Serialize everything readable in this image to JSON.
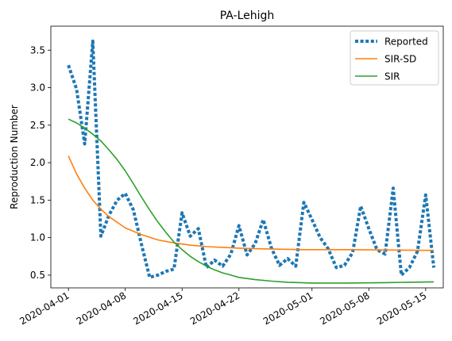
{
  "chart_data": {
    "type": "line",
    "title": "PA-Lehigh",
    "xlabel": "",
    "ylabel": "Reproduction Number",
    "x_start": "2020-04-01",
    "x_end": "2020-05-15",
    "xlim": [
      "2020-03-29T20:00",
      "2020-05-17T04:00"
    ],
    "ylim": [
      0.33,
      3.82
    ],
    "x_ticks": [
      "2020-04-01",
      "2020-04-08",
      "2020-04-15",
      "2020-04-22",
      "2020-05-01",
      "2020-05-08",
      "2020-05-15"
    ],
    "y_ticks": [
      0.5,
      1.0,
      1.5,
      2.0,
      2.5,
      3.0,
      3.5
    ],
    "y_tick_labels": [
      "0.5",
      "1.0",
      "1.5",
      "2.0",
      "2.5",
      "3.0",
      "3.5"
    ],
    "grid": false,
    "legend_position": "top-right",
    "series": [
      {
        "name": "Reported",
        "color": "#1f77b4",
        "style": "dotted",
        "points": [
          [
            "2020-04-01",
            3.3
          ],
          [
            "2020-04-02",
            2.98
          ],
          [
            "2020-04-03",
            2.25
          ],
          [
            "2020-04-04",
            3.62
          ],
          [
            "2020-04-05",
            1.02
          ],
          [
            "2020-04-06",
            1.3
          ],
          [
            "2020-04-07",
            1.5
          ],
          [
            "2020-04-08",
            1.59
          ],
          [
            "2020-04-09",
            1.37
          ],
          [
            "2020-04-10",
            0.91
          ],
          [
            "2020-04-11",
            0.47
          ],
          [
            "2020-04-12",
            0.5
          ],
          [
            "2020-04-13",
            0.55
          ],
          [
            "2020-04-14",
            0.58
          ],
          [
            "2020-04-15",
            1.33
          ],
          [
            "2020-04-16",
            1.02
          ],
          [
            "2020-04-17",
            1.12
          ],
          [
            "2020-04-18",
            0.6
          ],
          [
            "2020-04-19",
            0.7
          ],
          [
            "2020-04-20",
            0.62
          ],
          [
            "2020-04-21",
            0.78
          ],
          [
            "2020-04-22",
            1.16
          ],
          [
            "2020-04-23",
            0.77
          ],
          [
            "2020-04-24",
            0.92
          ],
          [
            "2020-04-25",
            1.24
          ],
          [
            "2020-04-26",
            0.86
          ],
          [
            "2020-04-27",
            0.63
          ],
          [
            "2020-04-28",
            0.72
          ],
          [
            "2020-04-29",
            0.62
          ],
          [
            "2020-04-30",
            1.47
          ],
          [
            "2020-05-01",
            1.24
          ],
          [
            "2020-05-02",
            1.0
          ],
          [
            "2020-05-03",
            0.85
          ],
          [
            "2020-05-04",
            0.6
          ],
          [
            "2020-05-05",
            0.63
          ],
          [
            "2020-05-06",
            0.8
          ],
          [
            "2020-05-07",
            1.42
          ],
          [
            "2020-05-08",
            1.12
          ],
          [
            "2020-05-09",
            0.84
          ],
          [
            "2020-05-10",
            0.78
          ],
          [
            "2020-05-11",
            1.66
          ],
          [
            "2020-05-12",
            0.5
          ],
          [
            "2020-05-13",
            0.6
          ],
          [
            "2020-05-14",
            0.82
          ],
          [
            "2020-05-15",
            1.57
          ],
          [
            "2020-05-16",
            0.6
          ]
        ]
      },
      {
        "name": "SIR-SD",
        "color": "#ff7f0e",
        "style": "solid",
        "points": [
          [
            "2020-04-01",
            2.09
          ],
          [
            "2020-04-02",
            1.85
          ],
          [
            "2020-04-03",
            1.66
          ],
          [
            "2020-04-04",
            1.5
          ],
          [
            "2020-04-05",
            1.38
          ],
          [
            "2020-04-06",
            1.28
          ],
          [
            "2020-04-08",
            1.13
          ],
          [
            "2020-04-10",
            1.04
          ],
          [
            "2020-04-12",
            0.97
          ],
          [
            "2020-04-14",
            0.93
          ],
          [
            "2020-04-16",
            0.9
          ],
          [
            "2020-04-18",
            0.88
          ],
          [
            "2020-04-20",
            0.87
          ],
          [
            "2020-04-22",
            0.86
          ],
          [
            "2020-04-25",
            0.85
          ],
          [
            "2020-04-30",
            0.84
          ],
          [
            "2020-05-05",
            0.84
          ],
          [
            "2020-05-10",
            0.835
          ],
          [
            "2020-05-15",
            0.83
          ],
          [
            "2020-05-16",
            0.83
          ]
        ]
      },
      {
        "name": "SIR",
        "color": "#2ca02c",
        "style": "solid",
        "points": [
          [
            "2020-04-01",
            2.58
          ],
          [
            "2020-04-02",
            2.53
          ],
          [
            "2020-04-03",
            2.46
          ],
          [
            "2020-04-04",
            2.38
          ],
          [
            "2020-04-05",
            2.29
          ],
          [
            "2020-04-06",
            2.17
          ],
          [
            "2020-04-07",
            2.04
          ],
          [
            "2020-04-08",
            1.89
          ],
          [
            "2020-04-09",
            1.72
          ],
          [
            "2020-04-10",
            1.54
          ],
          [
            "2020-04-11",
            1.37
          ],
          [
            "2020-04-12",
            1.21
          ],
          [
            "2020-04-13",
            1.07
          ],
          [
            "2020-04-14",
            0.94
          ],
          [
            "2020-04-15",
            0.84
          ],
          [
            "2020-04-16",
            0.75
          ],
          [
            "2020-04-17",
            0.68
          ],
          [
            "2020-04-18",
            0.62
          ],
          [
            "2020-04-19",
            0.57
          ],
          [
            "2020-04-20",
            0.53
          ],
          [
            "2020-04-21",
            0.5
          ],
          [
            "2020-04-22",
            0.47
          ],
          [
            "2020-04-24",
            0.44
          ],
          [
            "2020-04-26",
            0.42
          ],
          [
            "2020-04-28",
            0.405
          ],
          [
            "2020-05-01",
            0.395
          ],
          [
            "2020-05-05",
            0.395
          ],
          [
            "2020-05-10",
            0.4
          ],
          [
            "2020-05-16",
            0.41
          ]
        ]
      }
    ]
  }
}
